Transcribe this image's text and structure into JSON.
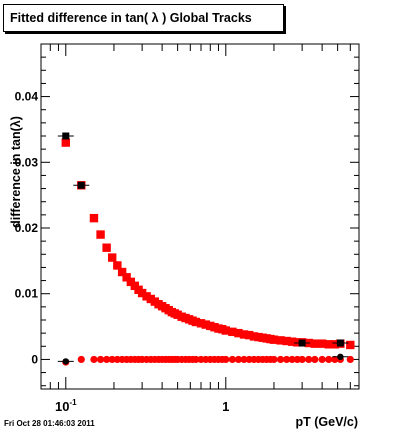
{
  "chart_data": {
    "type": "scatter",
    "title": "Fitted difference in tan( λ )  Global Tracks",
    "xlabel": "pT (GeV/c)",
    "ylabel": "difference in tan(λ)",
    "x_scale": "log",
    "xlim": [
      0.07,
      6.8
    ],
    "ylim": [
      -0.0045,
      0.048
    ],
    "y_ticks": [
      {
        "value": 0,
        "label": "0"
      },
      {
        "value": 0.01,
        "label": "0.01"
      },
      {
        "value": 0.02,
        "label": "0.02"
      },
      {
        "value": 0.03,
        "label": "0.03"
      },
      {
        "value": 0.04,
        "label": "0.04"
      }
    ],
    "x_ticks": [
      {
        "value": 0.1,
        "base": "10",
        "exp": "-1"
      },
      {
        "value": 1,
        "base": "1",
        "exp": ""
      }
    ],
    "grid": false,
    "colors": {
      "series": "#ff0000",
      "overlay": "#000000"
    },
    "series": [
      {
        "marker": "square",
        "color": "#ff0000",
        "points": [
          [
            0.1,
            0.033
          ],
          [
            0.125,
            0.0265
          ],
          [
            0.15,
            0.0215
          ],
          [
            0.165,
            0.019
          ],
          [
            0.18,
            0.017
          ],
          [
            0.195,
            0.0155
          ],
          [
            0.21,
            0.0143
          ],
          [
            0.225,
            0.0133
          ],
          [
            0.24,
            0.0125
          ],
          [
            0.255,
            0.0118
          ],
          [
            0.27,
            0.0112
          ],
          [
            0.285,
            0.0106
          ],
          [
            0.3,
            0.0101
          ],
          [
            0.32,
            0.0096
          ],
          [
            0.34,
            0.0092
          ],
          [
            0.36,
            0.0088
          ],
          [
            0.38,
            0.0084
          ],
          [
            0.4,
            0.0081
          ],
          [
            0.42,
            0.0078
          ],
          [
            0.44,
            0.0075
          ],
          [
            0.46,
            0.0072
          ],
          [
            0.48,
            0.007
          ],
          [
            0.5,
            0.0068
          ],
          [
            0.53,
            0.0065
          ],
          [
            0.56,
            0.0063
          ],
          [
            0.59,
            0.0061
          ],
          [
            0.62,
            0.0059
          ],
          [
            0.65,
            0.0057
          ],
          [
            0.7,
            0.0055
          ],
          [
            0.75,
            0.0053
          ],
          [
            0.8,
            0.0051
          ],
          [
            0.85,
            0.0049
          ],
          [
            0.9,
            0.0047
          ],
          [
            0.95,
            0.0046
          ],
          [
            1.0,
            0.0044
          ],
          [
            1.1,
            0.0042
          ],
          [
            1.2,
            0.004
          ],
          [
            1.3,
            0.0038
          ],
          [
            1.4,
            0.0037
          ],
          [
            1.5,
            0.0035
          ],
          [
            1.6,
            0.0034
          ],
          [
            1.7,
            0.0033
          ],
          [
            1.8,
            0.0032
          ],
          [
            1.9,
            0.0031
          ],
          [
            2.0,
            0.003
          ],
          [
            2.2,
            0.0029
          ],
          [
            2.4,
            0.0028
          ],
          [
            2.6,
            0.0027
          ],
          [
            2.8,
            0.0026
          ],
          [
            3.0,
            0.0026
          ],
          [
            3.3,
            0.0025
          ],
          [
            3.6,
            0.0024
          ],
          [
            4.0,
            0.0024
          ],
          [
            4.4,
            0.0023
          ],
          [
            4.8,
            0.0023
          ],
          [
            5.2,
            0.0024
          ],
          [
            6.0,
            0.0022
          ]
        ]
      },
      {
        "marker": "circle",
        "color": "#ff0000",
        "points": [
          [
            0.1,
            -0.0004
          ],
          [
            0.125,
            0.0
          ],
          [
            0.15,
            0.0
          ],
          [
            0.165,
            0.0
          ],
          [
            0.18,
            0.0
          ],
          [
            0.195,
            0.0
          ],
          [
            0.21,
            0.0
          ],
          [
            0.225,
            0.0
          ],
          [
            0.24,
            0.0
          ],
          [
            0.255,
            0.0
          ],
          [
            0.27,
            0.0
          ],
          [
            0.285,
            0.0
          ],
          [
            0.3,
            0.0
          ],
          [
            0.32,
            0.0
          ],
          [
            0.34,
            0.0
          ],
          [
            0.36,
            0.0
          ],
          [
            0.38,
            0.0
          ],
          [
            0.4,
            0.0
          ],
          [
            0.42,
            0.0
          ],
          [
            0.44,
            0.0
          ],
          [
            0.46,
            0.0
          ],
          [
            0.48,
            0.0
          ],
          [
            0.5,
            0.0
          ],
          [
            0.53,
            0.0
          ],
          [
            0.56,
            0.0
          ],
          [
            0.59,
            0.0
          ],
          [
            0.62,
            0.0
          ],
          [
            0.65,
            0.0
          ],
          [
            0.7,
            0.0
          ],
          [
            0.75,
            0.0
          ],
          [
            0.8,
            0.0
          ],
          [
            0.85,
            0.0
          ],
          [
            0.9,
            0.0
          ],
          [
            0.95,
            0.0
          ],
          [
            1.0,
            0.0
          ],
          [
            1.1,
            0.0
          ],
          [
            1.2,
            0.0
          ],
          [
            1.3,
            0.0
          ],
          [
            1.4,
            0.0
          ],
          [
            1.5,
            0.0
          ],
          [
            1.6,
            0.0
          ],
          [
            1.7,
            0.0
          ],
          [
            1.8,
            0.0
          ],
          [
            1.9,
            0.0
          ],
          [
            2.0,
            0.0
          ],
          [
            2.2,
            0.0
          ],
          [
            2.4,
            0.0
          ],
          [
            2.6,
            0.0
          ],
          [
            2.8,
            0.0
          ],
          [
            3.0,
            0.0
          ],
          [
            3.3,
            0.0
          ],
          [
            3.6,
            0.0
          ],
          [
            4.0,
            0.0
          ],
          [
            4.4,
            0.0
          ],
          [
            4.8,
            0.0
          ],
          [
            5.2,
            0.0
          ],
          [
            6.0,
            0.0
          ]
        ]
      },
      {
        "marker": "square",
        "color": "#000000",
        "points": [
          [
            0.1,
            0.034
          ],
          [
            0.125,
            0.0265
          ],
          [
            3.0,
            0.0025
          ],
          [
            5.2,
            0.0025
          ]
        ]
      },
      {
        "marker": "circle",
        "color": "#000000",
        "points": [
          [
            0.1,
            -0.0003
          ],
          [
            5.2,
            0.0004
          ]
        ]
      }
    ]
  },
  "footer": {
    "timestamp": "Fri Oct 28 01:46:03 2011"
  }
}
